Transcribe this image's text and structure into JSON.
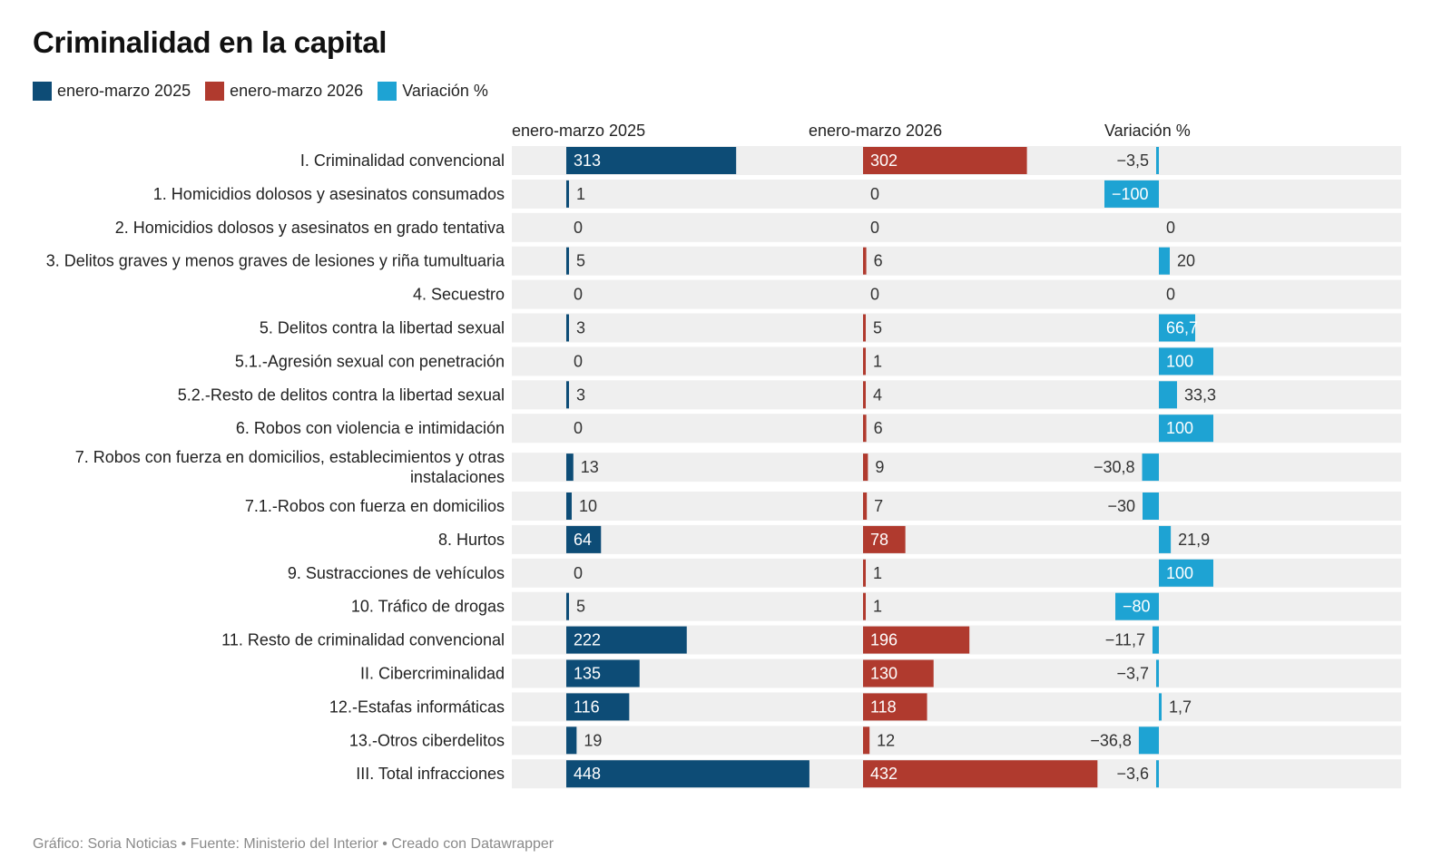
{
  "title": "Criminalidad en la capital",
  "footer": "Gráfico: Soria Noticias • Fuente: Ministerio del Interior • Creado con Datawrapper",
  "legend": [
    {
      "label": "enero-marzo 2025",
      "color": "#0d4c76"
    },
    {
      "label": "enero-marzo 2026",
      "color": "#b03a2e"
    },
    {
      "label": "Variación %",
      "color": "#1ea3d3"
    }
  ],
  "colors": {
    "row_bg": "#efefef",
    "label_on_bar": "#ffffff",
    "label_off_bar": "#333333"
  },
  "chart_data": {
    "type": "bar",
    "columns": [
      "enero-marzo 2025",
      "enero-marzo 2026",
      "Variación %"
    ],
    "categories": [
      "I. Criminalidad convencional",
      "1. Homicidios dolosos y asesinatos consumados",
      "2. Homicidios dolosos y asesinatos en grado tentativa",
      "3. Delitos graves y menos graves de lesiones y riña tumultuaria",
      "4. Secuestro",
      "5. Delitos contra la libertad sexual",
      "5.1.-Agresión sexual con penetración",
      "5.2.-Resto de delitos contra la libertad sexual",
      "6. Robos con violencia e intimidación",
      "7. Robos con fuerza en domicilios, establecimientos y otras instalaciones",
      "7.1.-Robos con fuerza en domicilios",
      "8. Hurtos",
      "9. Sustracciones de vehículos",
      "10. Tráfico de drogas",
      "11. Resto de criminalidad convencional",
      "II. Cibercriminalidad",
      "12.-Estafas informáticas",
      "13.-Otros ciberdelitos",
      "III. Total infracciones"
    ],
    "series": [
      {
        "name": "enero-marzo 2025",
        "values": [
          313,
          1,
          0,
          5,
          0,
          3,
          0,
          3,
          0,
          13,
          10,
          64,
          0,
          5,
          222,
          135,
          116,
          19,
          448
        ],
        "labels": [
          "313",
          "1",
          "0",
          "5",
          "0",
          "3",
          "0",
          "3",
          "0",
          "13",
          "10",
          "64",
          "0",
          "5",
          "222",
          "135",
          "116",
          "19",
          "448"
        ]
      },
      {
        "name": "enero-marzo 2026",
        "values": [
          302,
          0,
          0,
          6,
          0,
          5,
          1,
          4,
          6,
          9,
          7,
          78,
          1,
          1,
          196,
          130,
          118,
          12,
          432
        ],
        "labels": [
          "302",
          "0",
          "0",
          "6",
          "0",
          "5",
          "1",
          "4",
          "6",
          "9",
          "7",
          "78",
          "1",
          "1",
          "196",
          "130",
          "118",
          "12",
          "432"
        ]
      },
      {
        "name": "Variación %",
        "values": [
          -3.5,
          -100,
          0,
          20,
          0,
          66.7,
          100,
          33.3,
          100,
          -30.8,
          -30,
          21.9,
          100,
          -80,
          -11.7,
          -3.7,
          1.7,
          -36.8,
          -3.6
        ],
        "labels": [
          "−3,5",
          "−100",
          "0",
          "20",
          "0",
          "66,7",
          "100",
          "33,3",
          "100",
          "−30,8",
          "−30",
          "21,9",
          "100",
          "−80",
          "−11,7",
          "−3,7",
          "1,7",
          "−36,8",
          "−3,6"
        ]
      }
    ]
  }
}
